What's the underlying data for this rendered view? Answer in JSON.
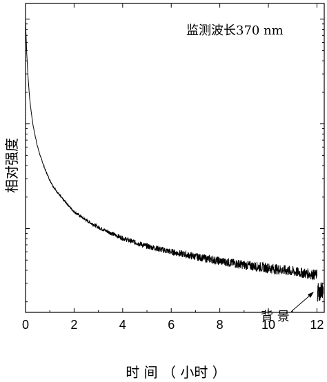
{
  "chart_data": {
    "type": "line",
    "annotation": "监测波长370 nm",
    "xlabel": "时 间 （ 小时 ）",
    "ylabel": "相对强度",
    "x_ticks": [
      "0",
      "2",
      "4",
      "6",
      "8",
      "10",
      "12"
    ],
    "xlim": [
      0,
      12.3
    ],
    "y_scale": "log",
    "y_tick_labels_shown": false,
    "background_label": "背 景",
    "series": [
      {
        "x": [
          0.0,
          0.02,
          0.05,
          0.1,
          0.15,
          0.2,
          0.3,
          0.4,
          0.5,
          0.6,
          0.8,
          1.0,
          1.2,
          1.5,
          2.0,
          2.5,
          3.0,
          3.5,
          4.0,
          4.5,
          5.0,
          6.0,
          7.0,
          8.0,
          9.0,
          10.0,
          11.0,
          12.0
        ],
        "y": [
          1000,
          720,
          470,
          290,
          200,
          150,
          100,
          76,
          60,
          50,
          37,
          29,
          24,
          19.5,
          14.5,
          12.0,
          10.3,
          9.1,
          8.1,
          7.4,
          6.8,
          6.0,
          5.4,
          4.9,
          4.5,
          4.2,
          3.9,
          3.6
        ]
      },
      {
        "name": "背 景",
        "x": [
          12.02,
          12.05,
          12.1,
          12.15,
          12.2,
          12.25
        ],
        "y": [
          2.3,
          2.6,
          2.4,
          2.5,
          2.7,
          2.5
        ]
      }
    ]
  }
}
